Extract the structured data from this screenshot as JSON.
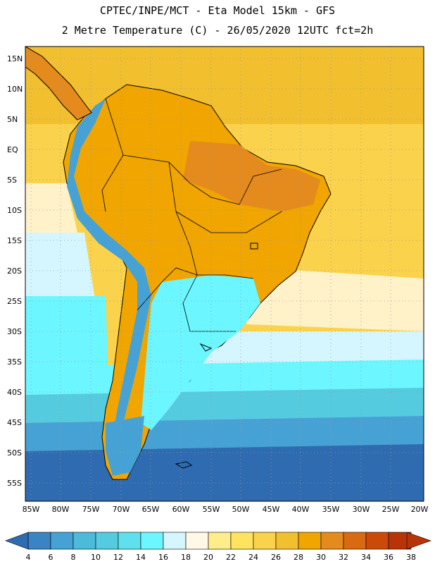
{
  "title": {
    "line1": "CPTEC/INPE/MCT -  Eta Model 15km - GFS",
    "line2": "2 Metre Temperature (C) - 26/05/2020 12UTC fct=2h"
  },
  "axes": {
    "lat_labels": [
      "15N",
      "10N",
      "5N",
      "EQ",
      "5S",
      "10S",
      "15S",
      "20S",
      "25S",
      "30S",
      "35S",
      "40S",
      "45S",
      "50S",
      "55S"
    ],
    "lon_labels": [
      "85W",
      "80W",
      "75W",
      "70W",
      "65W",
      "60W",
      "55W",
      "50W",
      "45W",
      "40W",
      "35W",
      "30W",
      "25W",
      "20W"
    ]
  },
  "colorbar": {
    "labels": [
      "4",
      "6",
      "8",
      "10",
      "12",
      "14",
      "16",
      "18",
      "20",
      "22",
      "24",
      "26",
      "28",
      "30",
      "32",
      "34",
      "36",
      "38"
    ],
    "colors": [
      "#2f6bb0",
      "#3a84c4",
      "#46a2d4",
      "#4cbad9",
      "#55cbe0",
      "#5ee1ec",
      "#6cf6ff",
      "#d6f6ff",
      "#fff8e6",
      "#ffec8a",
      "#fee35e",
      "#fbd24b",
      "#f2bf2f",
      "#f0a500",
      "#e58a1c",
      "#d96a12",
      "#cc4a07",
      "#b83306"
    ]
  },
  "legend_colors": {
    "ocean_south_deep": "#2f6bb0",
    "ocean_south_mid": "#46a2d4",
    "ocean_cool": "#6cf6ff",
    "ocean_warm": "#fbd24b",
    "land_hot": "#f2bf2f",
    "land_very_hot": "#e58a1c",
    "grid": "#9a9a9a",
    "border": "#000000"
  }
}
